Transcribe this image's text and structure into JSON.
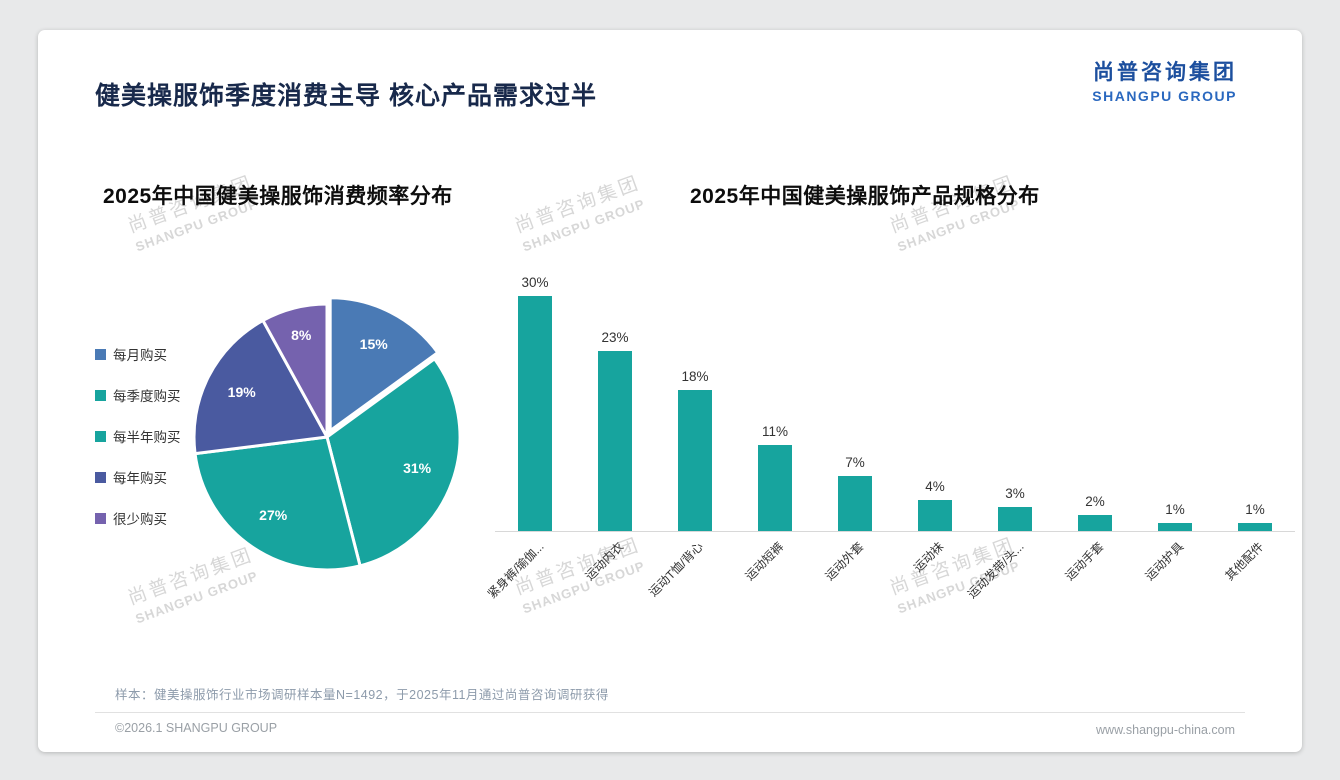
{
  "page": {
    "title": "健美操服饰季度消费主导 核心产品需求过半",
    "logo": {
      "cn": "尚普咨询集团",
      "en": "SHANGPU GROUP"
    },
    "watermark": {
      "cn": "尚普咨询集团",
      "en": "SHANGPU GROUP"
    },
    "footer": {
      "note": "样本：健美操服饰行业市场调研样本量N=1492，于2025年11月通过尚普咨询调研获得",
      "copyright": "©2026.1 SHANGPU GROUP",
      "website": "www.shangpu-china.com"
    }
  },
  "chart_data": [
    {
      "type": "pie",
      "title": "2025年中国健美操服饰消费频率分布",
      "legend_position": "left",
      "unit": "%",
      "slices": [
        {
          "label": "每月购买",
          "value": 15,
          "color": "#4a7ab5"
        },
        {
          "label": "每季度购买",
          "value": 31,
          "color": "#17a49e"
        },
        {
          "label": "每半年购买",
          "value": 27,
          "color": "#17a49e"
        },
        {
          "label": "每年购买",
          "value": 19,
          "color": "#4a5aa0"
        },
        {
          "label": "很少购买",
          "value": 8,
          "color": "#7562ae"
        }
      ]
    },
    {
      "type": "bar",
      "title": "2025年中国健美操服饰产品规格分布",
      "unit": "%",
      "bar_color": "#17a49e",
      "ylim": [
        0,
        30
      ],
      "grid": false,
      "categories": [
        "紧身裤/瑜伽...",
        "运动内衣",
        "运动T恤/背心",
        "运动短裤",
        "运动外套",
        "运动袜",
        "运动发带/头...",
        "运动手套",
        "运动护具",
        "其他配件"
      ],
      "values": [
        30,
        23,
        18,
        11,
        7,
        4,
        3,
        2,
        1,
        1
      ]
    }
  ]
}
